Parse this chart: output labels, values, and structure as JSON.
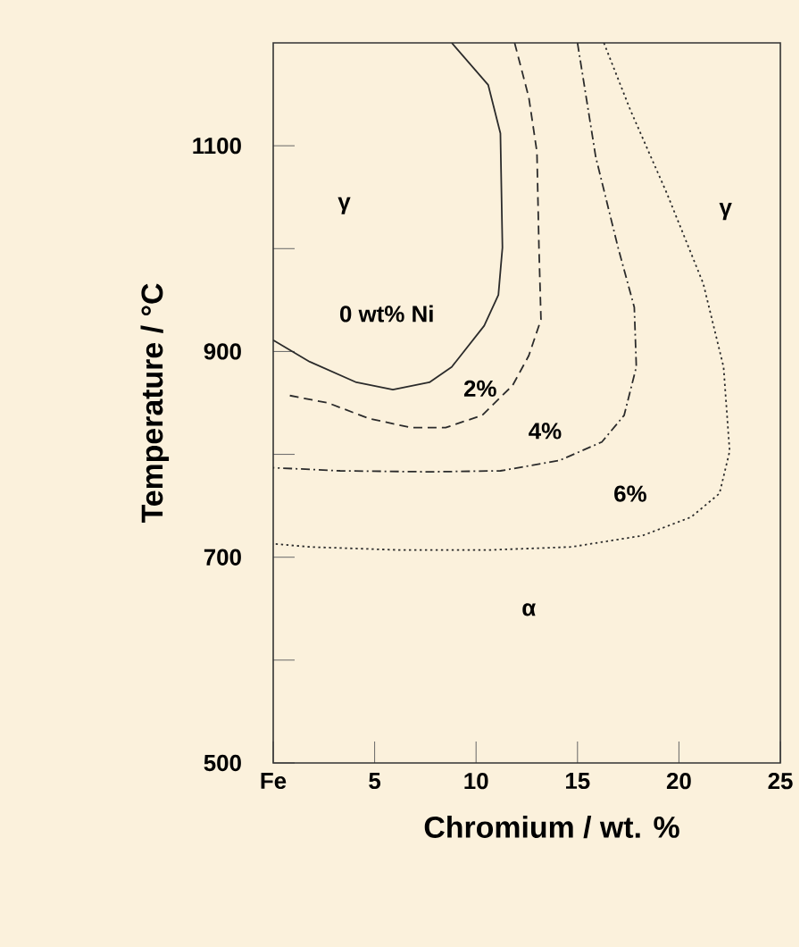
{
  "chart_data": {
    "type": "line",
    "xlabel": "Chromium / wt. %",
    "ylabel": "Temperature / °C",
    "xlim": [
      0,
      25
    ],
    "ylim": [
      500,
      1200
    ],
    "xticks": [
      {
        "value": 0,
        "label": "Fe"
      },
      5,
      10,
      15,
      20,
      25
    ],
    "yticks": [
      500,
      {
        "value": 600,
        "label": null
      },
      700,
      {
        "value": 800,
        "label": null
      },
      900,
      {
        "value": 1000,
        "label": null
      },
      1100
    ],
    "grid": false,
    "legend": false,
    "marker": "none",
    "series": [
      {
        "name": "0 wt% Ni",
        "color": "#2b2b2b",
        "line_style": "solid",
        "x": [
          8.8,
          10.6,
          11.2,
          11.3,
          11.1,
          10.4,
          8.8,
          7.7,
          5.9,
          4.1,
          1.8,
          0
        ],
        "values": [
          1200,
          1159,
          1112,
          1001,
          955,
          925,
          885,
          870,
          863,
          870,
          890,
          911
        ]
      },
      {
        "name": "2%",
        "color": "#2b2b2b",
        "line_style": "dashed",
        "x": [
          11.9,
          12.6,
          13.0,
          13.1,
          13.2,
          12.6,
          11.8,
          10.3,
          8.5,
          6.8,
          4.7,
          2.7,
          0.6
        ],
        "values": [
          1200,
          1147,
          1094,
          1001,
          931,
          896,
          867,
          838,
          826,
          826,
          835,
          850,
          858
        ]
      },
      {
        "name": "4%",
        "color": "#2b2b2b",
        "line_style": "dashdot",
        "x": [
          15.0,
          15.9,
          17.0,
          17.8,
          17.9,
          17.3,
          16.2,
          14.1,
          11.2,
          7.7,
          3.3,
          0
        ],
        "values": [
          1200,
          1089,
          1001,
          943,
          885,
          838,
          812,
          794,
          784,
          783,
          784,
          787
        ]
      },
      {
        "name": "6%",
        "color": "#2b2b2b",
        "line_style": "dotted",
        "x": [
          16.3,
          17.6,
          19.4,
          21.2,
          22.2,
          22.5,
          22.0,
          20.6,
          18.2,
          14.7,
          10.6,
          6.2,
          1.8,
          0
        ],
        "values": [
          1200,
          1135,
          1054,
          966,
          885,
          803,
          762,
          739,
          721,
          710,
          707,
          707,
          710,
          713
        ]
      }
    ],
    "annotations": [
      "γ",
      "γ",
      "α"
    ]
  }
}
